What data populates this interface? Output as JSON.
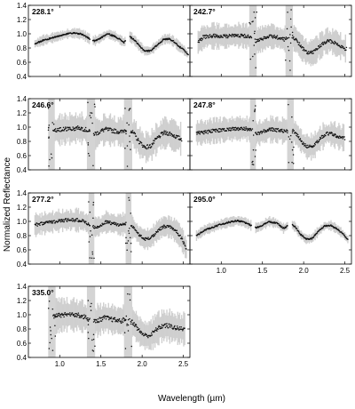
{
  "figure": {
    "ylabel": "Normalized Reflectance",
    "xlabel": "Wavelength (µm)"
  },
  "chart_data": [
    {
      "type": "scatter",
      "panel": "228.1°",
      "xlim": [
        0.62,
        2.58
      ],
      "ylim": [
        0.4,
        1.4
      ],
      "x_ticks": [
        1.0,
        1.5,
        2.0,
        2.5
      ],
      "y_ticks": [
        0.4,
        0.6,
        0.8,
        1.0,
        1.2,
        1.4
      ],
      "gaps": [
        [
          1.37,
          1.4
        ],
        [
          1.8,
          1.85
        ]
      ],
      "noise": 0.01,
      "bands": [],
      "spectrum": [
        [
          0.7,
          0.86
        ],
        [
          0.8,
          0.91
        ],
        [
          0.9,
          0.94
        ],
        [
          1.0,
          0.97
        ],
        [
          1.1,
          1.0
        ],
        [
          1.2,
          1.01
        ],
        [
          1.28,
          0.99
        ],
        [
          1.36,
          0.93
        ],
        [
          1.42,
          0.9
        ],
        [
          1.48,
          0.93
        ],
        [
          1.58,
          1.0
        ],
        [
          1.68,
          0.96
        ],
        [
          1.78,
          0.88
        ],
        [
          1.85,
          0.96
        ],
        [
          1.9,
          0.92
        ],
        [
          1.96,
          0.84
        ],
        [
          2.03,
          0.76
        ],
        [
          2.1,
          0.76
        ],
        [
          2.18,
          0.84
        ],
        [
          2.26,
          0.92
        ],
        [
          2.33,
          0.93
        ],
        [
          2.4,
          0.88
        ],
        [
          2.45,
          0.82
        ],
        [
          2.5,
          0.78
        ],
        [
          2.56,
          0.7
        ]
      ]
    },
    {
      "type": "scatter",
      "panel": "242.7°",
      "xlim": [
        0.62,
        2.58
      ],
      "ylim": [
        0.4,
        1.4
      ],
      "x_ticks": [
        1.0,
        1.5,
        2.0,
        2.5
      ],
      "y_ticks": [
        0.4,
        0.6,
        0.8,
        1.0,
        1.2,
        1.4
      ],
      "gaps": [
        [
          1.37,
          1.41
        ],
        [
          1.81,
          1.86
        ]
      ],
      "noise": 0.025,
      "bands": [
        [
          1.34,
          1.43
        ],
        [
          1.78,
          1.87
        ]
      ],
      "spectrum": [
        [
          0.72,
          0.88
        ],
        [
          0.78,
          0.95
        ],
        [
          0.85,
          0.97
        ],
        [
          0.92,
          0.97
        ],
        [
          1.0,
          0.96
        ],
        [
          1.1,
          0.97
        ],
        [
          1.2,
          0.98
        ],
        [
          1.3,
          0.97
        ],
        [
          1.36,
          0.95
        ],
        [
          1.42,
          0.9
        ],
        [
          1.5,
          0.93
        ],
        [
          1.58,
          0.97
        ],
        [
          1.68,
          0.95
        ],
        [
          1.76,
          0.92
        ],
        [
          1.85,
          0.97
        ],
        [
          1.92,
          0.9
        ],
        [
          1.98,
          0.8
        ],
        [
          2.05,
          0.73
        ],
        [
          2.12,
          0.74
        ],
        [
          2.2,
          0.83
        ],
        [
          2.28,
          0.9
        ],
        [
          2.35,
          0.89
        ],
        [
          2.42,
          0.85
        ],
        [
          2.48,
          0.8
        ],
        [
          2.52,
          0.79
        ]
      ]
    },
    {
      "type": "scatter",
      "panel": "246.6°",
      "xlim": [
        0.62,
        2.58
      ],
      "ylim": [
        0.4,
        1.4
      ],
      "x_ticks": [
        1.0,
        1.5,
        2.0,
        2.5
      ],
      "y_ticks": [
        0.4,
        0.6,
        0.8,
        1.0,
        1.2,
        1.4
      ],
      "gaps": [
        [
          1.37,
          1.41
        ],
        [
          1.81,
          1.86
        ]
      ],
      "noise": 0.03,
      "bands": [
        [
          0.86,
          0.94
        ],
        [
          1.33,
          1.43
        ],
        [
          1.78,
          1.88
        ]
      ],
      "spectrum": [
        [
          0.92,
          0.95
        ],
        [
          0.98,
          0.96
        ],
        [
          1.05,
          0.97
        ],
        [
          1.15,
          0.98
        ],
        [
          1.25,
          0.99
        ],
        [
          1.33,
          0.96
        ],
        [
          1.4,
          0.9
        ],
        [
          1.46,
          0.92
        ],
        [
          1.55,
          0.97
        ],
        [
          1.65,
          0.95
        ],
        [
          1.75,
          0.93
        ],
        [
          1.82,
          0.98
        ],
        [
          1.9,
          0.91
        ],
        [
          1.96,
          0.8
        ],
        [
          2.03,
          0.72
        ],
        [
          2.1,
          0.73
        ],
        [
          2.18,
          0.84
        ],
        [
          2.26,
          0.92
        ],
        [
          2.34,
          0.91
        ],
        [
          2.42,
          0.86
        ],
        [
          2.48,
          0.83
        ]
      ]
    },
    {
      "type": "scatter",
      "panel": "247.8°",
      "xlim": [
        0.62,
        2.58
      ],
      "ylim": [
        0.4,
        1.4
      ],
      "x_ticks": [
        1.0,
        1.5,
        2.0,
        2.5
      ],
      "y_ticks": [
        0.4,
        0.6,
        0.8,
        1.0,
        1.2,
        1.4
      ],
      "gaps": [
        [
          1.37,
          1.41
        ],
        [
          1.81,
          1.86
        ]
      ],
      "noise": 0.025,
      "bands": [
        [
          1.35,
          1.42
        ],
        [
          1.8,
          1.88
        ]
      ],
      "spectrum": [
        [
          0.7,
          0.92
        ],
        [
          0.8,
          0.93
        ],
        [
          0.9,
          0.95
        ],
        [
          1.0,
          0.96
        ],
        [
          1.1,
          0.97
        ],
        [
          1.2,
          0.98
        ],
        [
          1.3,
          0.98
        ],
        [
          1.36,
          0.96
        ],
        [
          1.42,
          0.91
        ],
        [
          1.5,
          0.93
        ],
        [
          1.58,
          0.97
        ],
        [
          1.68,
          0.96
        ],
        [
          1.76,
          0.95
        ],
        [
          1.85,
          0.98
        ],
        [
          1.92,
          0.89
        ],
        [
          1.98,
          0.79
        ],
        [
          2.05,
          0.72
        ],
        [
          2.12,
          0.73
        ],
        [
          2.2,
          0.84
        ],
        [
          2.28,
          0.91
        ],
        [
          2.36,
          0.9
        ],
        [
          2.44,
          0.86
        ],
        [
          2.5,
          0.85
        ]
      ]
    },
    {
      "type": "scatter",
      "panel": "277.2°",
      "xlim": [
        0.62,
        2.58
      ],
      "ylim": [
        0.4,
        1.4
      ],
      "x_ticks": [
        1.0,
        1.5,
        2.0,
        2.5
      ],
      "y_ticks": [
        0.4,
        0.6,
        0.8,
        1.0,
        1.2,
        1.4
      ],
      "gaps": [
        [
          1.37,
          1.4
        ],
        [
          1.81,
          1.86
        ]
      ],
      "noise": 0.022,
      "bands": [
        [
          1.35,
          1.42
        ],
        [
          1.8,
          1.87
        ]
      ],
      "spectrum": [
        [
          0.7,
          0.95
        ],
        [
          0.8,
          0.97
        ],
        [
          0.9,
          0.99
        ],
        [
          1.0,
          1.01
        ],
        [
          1.1,
          1.02
        ],
        [
          1.2,
          1.02
        ],
        [
          1.28,
          1.01
        ],
        [
          1.34,
          0.97
        ],
        [
          1.4,
          0.92
        ],
        [
          1.48,
          0.93
        ],
        [
          1.56,
          0.99
        ],
        [
          1.66,
          0.97
        ],
        [
          1.74,
          0.95
        ],
        [
          1.82,
          0.98
        ],
        [
          1.9,
          0.9
        ],
        [
          1.96,
          0.81
        ],
        [
          2.03,
          0.75
        ],
        [
          2.1,
          0.76
        ],
        [
          2.18,
          0.86
        ],
        [
          2.26,
          0.93
        ],
        [
          2.34,
          0.92
        ],
        [
          2.42,
          0.86
        ],
        [
          2.48,
          0.76
        ],
        [
          2.54,
          0.6
        ]
      ]
    },
    {
      "type": "scatter",
      "panel": "295.0°",
      "xlim": [
        0.62,
        2.58
      ],
      "ylim": [
        0.4,
        1.4
      ],
      "x_ticks": [
        1.0,
        1.5,
        2.0,
        2.5
      ],
      "y_ticks": [
        0.4,
        0.6,
        0.8,
        1.0,
        1.2,
        1.4
      ],
      "gaps": [
        [
          1.37,
          1.41
        ],
        [
          1.81,
          1.86
        ]
      ],
      "noise": 0.01,
      "bands": [],
      "spectrum": [
        [
          0.7,
          0.8
        ],
        [
          0.8,
          0.88
        ],
        [
          0.9,
          0.92
        ],
        [
          1.0,
          0.96
        ],
        [
          1.1,
          0.99
        ],
        [
          1.2,
          1.01
        ],
        [
          1.28,
          0.99
        ],
        [
          1.35,
          0.95
        ],
        [
          1.42,
          0.91
        ],
        [
          1.48,
          0.93
        ],
        [
          1.58,
          1.0
        ],
        [
          1.68,
          0.97
        ],
        [
          1.76,
          0.9
        ],
        [
          1.84,
          0.97
        ],
        [
          1.9,
          0.92
        ],
        [
          1.96,
          0.82
        ],
        [
          2.03,
          0.75
        ],
        [
          2.1,
          0.76
        ],
        [
          2.18,
          0.86
        ],
        [
          2.26,
          0.94
        ],
        [
          2.34,
          0.94
        ],
        [
          2.42,
          0.88
        ],
        [
          2.48,
          0.82
        ],
        [
          2.54,
          0.74
        ]
      ]
    },
    {
      "type": "scatter",
      "panel": "335.0°",
      "xlim": [
        0.62,
        2.58
      ],
      "ylim": [
        0.4,
        1.4
      ],
      "x_ticks": [
        1.0,
        1.5,
        2.0,
        2.5
      ],
      "y_ticks": [
        0.4,
        0.6,
        0.8,
        1.0,
        1.2,
        1.4
      ],
      "gaps": [
        [
          1.37,
          1.41
        ],
        [
          1.81,
          1.86
        ]
      ],
      "noise": 0.032,
      "bands": [
        [
          0.86,
          0.95
        ],
        [
          1.33,
          1.43
        ],
        [
          1.78,
          1.88
        ]
      ],
      "spectrum": [
        [
          0.92,
          0.97
        ],
        [
          0.98,
          0.99
        ],
        [
          1.05,
          1.0
        ],
        [
          1.15,
          1.0
        ],
        [
          1.25,
          0.99
        ],
        [
          1.32,
          0.96
        ],
        [
          1.4,
          0.9
        ],
        [
          1.46,
          0.92
        ],
        [
          1.55,
          0.96
        ],
        [
          1.65,
          0.93
        ],
        [
          1.75,
          0.91
        ],
        [
          1.82,
          0.96
        ],
        [
          1.9,
          0.88
        ],
        [
          1.96,
          0.78
        ],
        [
          2.03,
          0.71
        ],
        [
          2.1,
          0.71
        ],
        [
          2.18,
          0.8
        ],
        [
          2.26,
          0.85
        ],
        [
          2.34,
          0.84
        ],
        [
          2.42,
          0.81
        ],
        [
          2.48,
          0.8
        ],
        [
          2.52,
          0.8
        ]
      ]
    }
  ]
}
